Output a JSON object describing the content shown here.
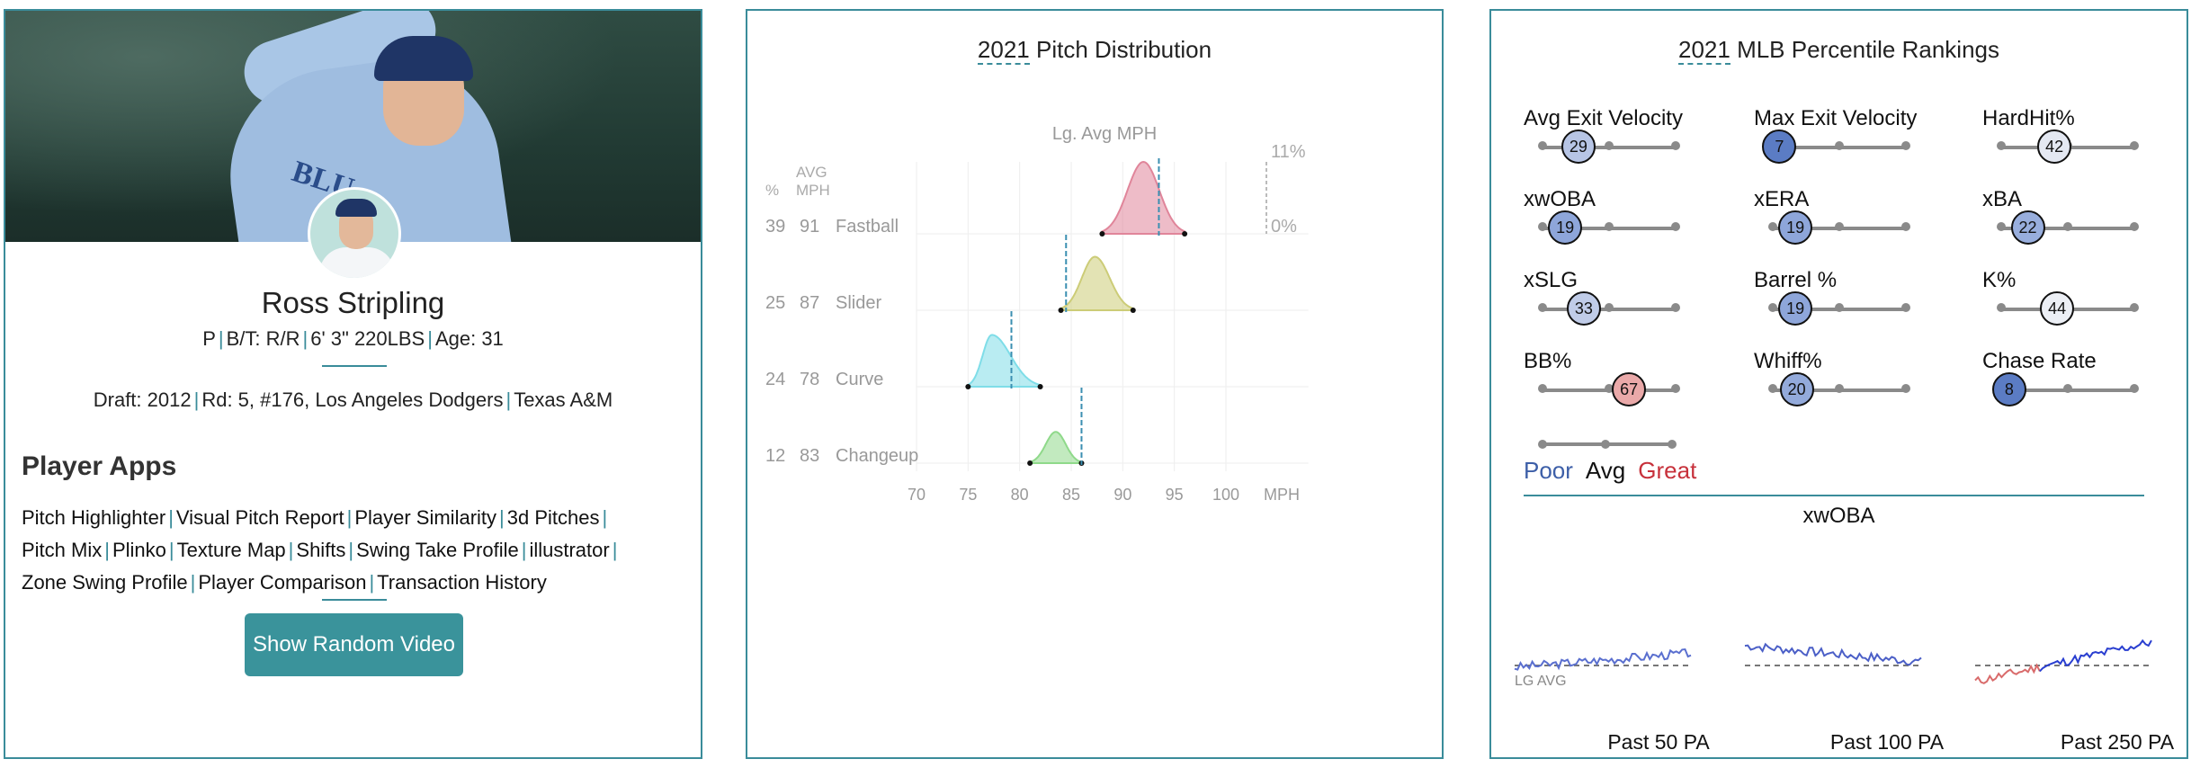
{
  "player": {
    "name": "Ross Stripling",
    "position": "P",
    "bats_throws": "B/T: R/R",
    "height_weight": "6' 3\" 220LBS",
    "age": "Age: 31",
    "draft_label": "Draft: ",
    "draft_year": "2012",
    "draft_pick": "Rd: 5, #176,",
    "draft_team": "Los Angeles Dodgers",
    "college": "Texas A&M",
    "hero_letters": "BLU"
  },
  "apps": {
    "heading": "Player Apps",
    "links": [
      "Pitch Highlighter",
      "Visual Pitch Report",
      "Player Similarity",
      "3d Pitches",
      "Pitch Mix",
      "Plinko",
      "Texture Map",
      "Shifts",
      "Swing Take Profile",
      "illustrator",
      "Zone Swing Profile",
      "Player Comparison",
      "Transaction History"
    ],
    "button": "Show Random Video"
  },
  "pitch_dist": {
    "year": "2021",
    "title": " Pitch Distribution",
    "col_pct": "%",
    "col_avg": "AVG",
    "col_mph": "MPH",
    "lg_avg_label": "Lg. Avg MPH",
    "scale_top": "11%",
    "scale_bottom": "0%",
    "x_unit": "MPH",
    "x_ticks": [
      "70",
      "75",
      "80",
      "85",
      "90",
      "95",
      "100"
    ]
  },
  "chart_data": {
    "type": "area",
    "title": "2021 Pitch Distribution",
    "xlabel": "MPH",
    "xlim": [
      70,
      100
    ],
    "ylim": [
      0,
      11
    ],
    "grid": true,
    "series": [
      {
        "name": "Fastball",
        "pct": 39,
        "avg_mph": 91,
        "lg_avg_mph": 93.5,
        "color": "#e0859a",
        "range": [
          88,
          96
        ],
        "peak": 92
      },
      {
        "name": "Slider",
        "pct": 25,
        "avg_mph": 87,
        "lg_avg_mph": 84.5,
        "color": "#cccc77",
        "range": [
          84,
          91
        ],
        "peak": 87.3
      },
      {
        "name": "Curve",
        "pct": 24,
        "avg_mph": 78,
        "lg_avg_mph": 79.2,
        "color": "#7fdde8",
        "range": [
          75,
          82
        ],
        "peak": 77.3
      },
      {
        "name": "Changeup",
        "pct": 12,
        "avg_mph": 83,
        "lg_avg_mph": 86,
        "color": "#8fd98a",
        "range": [
          81,
          86
        ],
        "peak": 83.5
      }
    ]
  },
  "percentiles": {
    "year": "2021",
    "title": " MLB Percentile Rankings",
    "metrics": [
      {
        "label": "Avg Exit Velocity",
        "value": "29",
        "color": "#b7c5e5"
      },
      {
        "label": "Max Exit Velocity",
        "value": "7",
        "color": "#5b7cc4"
      },
      {
        "label": "HardHit%",
        "value": "42",
        "color": "#e4e8f2"
      },
      {
        "label": "xwOBA",
        "value": "19",
        "color": "#8ea6da"
      },
      {
        "label": "xERA",
        "value": "19",
        "color": "#8ea6da"
      },
      {
        "label": "xBA",
        "value": "22",
        "color": "#98aedd"
      },
      {
        "label": "xSLG",
        "value": "33",
        "color": "#c0cce8"
      },
      {
        "label": "Barrel %",
        "value": "19",
        "color": "#8ea6da"
      },
      {
        "label": "K%",
        "value": "44",
        "color": "#eceff5"
      },
      {
        "label": "BB%",
        "value": "67",
        "color": "#eaa9a9"
      },
      {
        "label": "Whiff%",
        "value": "20",
        "color": "#93aadb"
      },
      {
        "label": "Chase Rate",
        "value": "8",
        "color": "#5b7cc4"
      }
    ],
    "legend": {
      "poor": "Poor",
      "avg": "Avg",
      "great": "Great"
    },
    "xwoba_title": "xwOBA",
    "lg_avg": "LG AVG",
    "spark_labels": [
      "Past 50 PA",
      "Past 100 PA",
      "Past 250 PA"
    ]
  }
}
